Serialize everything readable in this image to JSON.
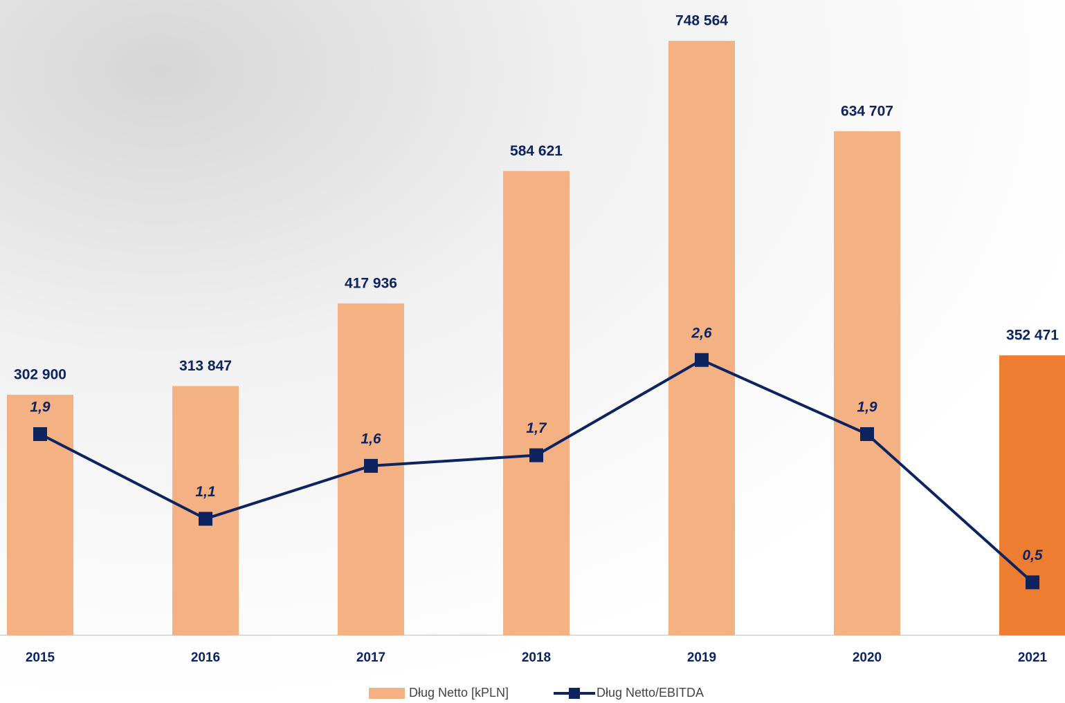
{
  "chart_data": {
    "type": "bar-line",
    "categories": [
      "2015",
      "2016",
      "2017",
      "2018",
      "2019",
      "2020",
      "2021"
    ],
    "series": [
      {
        "name": "Dług Netto [kPLN]",
        "type": "bar",
        "color": "#f4b183",
        "colors": [
          "#f4b183",
          "#f4b183",
          "#f4b183",
          "#f4b183",
          "#f4b183",
          "#f4b183",
          "#ed7d31"
        ],
        "values": [
          302900,
          313847,
          417936,
          584621,
          748564,
          634707,
          352471
        ],
        "value_labels": [
          "302 900",
          "313 847",
          "417 936",
          "584 621",
          "748 564",
          "634 707",
          "352 471"
        ]
      },
      {
        "name": "Dług Netto/EBITDA",
        "type": "line",
        "axis": "y2",
        "color": "#0d2461",
        "values": [
          1.9,
          1.1,
          1.6,
          1.7,
          2.6,
          1.9,
          0.5
        ],
        "value_labels": [
          "1,9",
          "1,1",
          "1,6",
          "1,7",
          "2,6",
          "1,9",
          "0,5"
        ]
      }
    ],
    "ylim": [
      0,
      800000
    ],
    "y2lim": [
      0,
      6
    ],
    "legend": "bottom"
  }
}
